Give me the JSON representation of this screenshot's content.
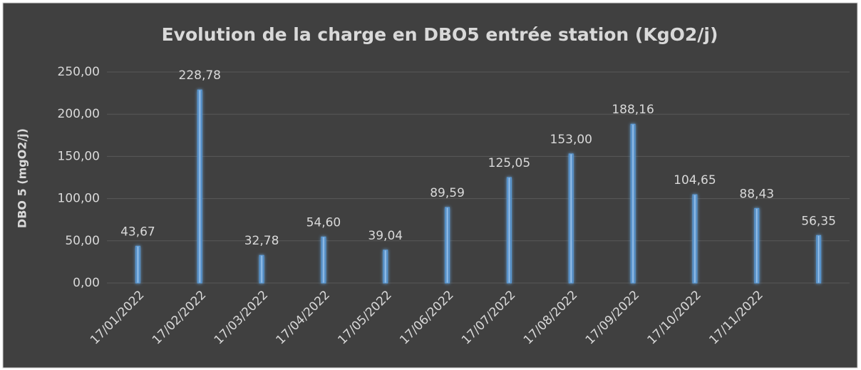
{
  "chart_data": {
    "type": "bar",
    "title": "Evolution de la charge en DBO5 entrée station (KgO2/j)",
    "y_axis_label": "DBO 5 (mgO2/j)",
    "categories": [
      "17/01/2022",
      "17/02/2022",
      "17/03/2022",
      "17/04/2022",
      "17/05/2022",
      "17/06/2022",
      "17/07/2022",
      "17/08/2022",
      "17/09/2022",
      "17/10/2022",
      "17/11/2022",
      null
    ],
    "values": [
      43.67,
      228.78,
      32.78,
      54.6,
      39.04,
      89.59,
      125.05,
      153.0,
      188.16,
      104.65,
      88.43,
      56.35
    ],
    "value_labels": [
      "43,67",
      "228,78",
      "32,78",
      "54,60",
      "39,04",
      "89,59",
      "125,05",
      "153,00",
      "188,16",
      "104,65",
      "88,43",
      "56,35"
    ],
    "color": "#5b9bd5",
    "ylim": [
      0,
      250
    ],
    "yticks": [
      {
        "value": 0,
        "label": "0,00"
      },
      {
        "value": 50,
        "label": "50,00"
      },
      {
        "value": 100,
        "label": "100,00"
      },
      {
        "value": 150,
        "label": "150,00"
      },
      {
        "value": 200,
        "label": "200,00"
      },
      {
        "value": 250,
        "label": "250,00"
      }
    ],
    "grid": true
  }
}
